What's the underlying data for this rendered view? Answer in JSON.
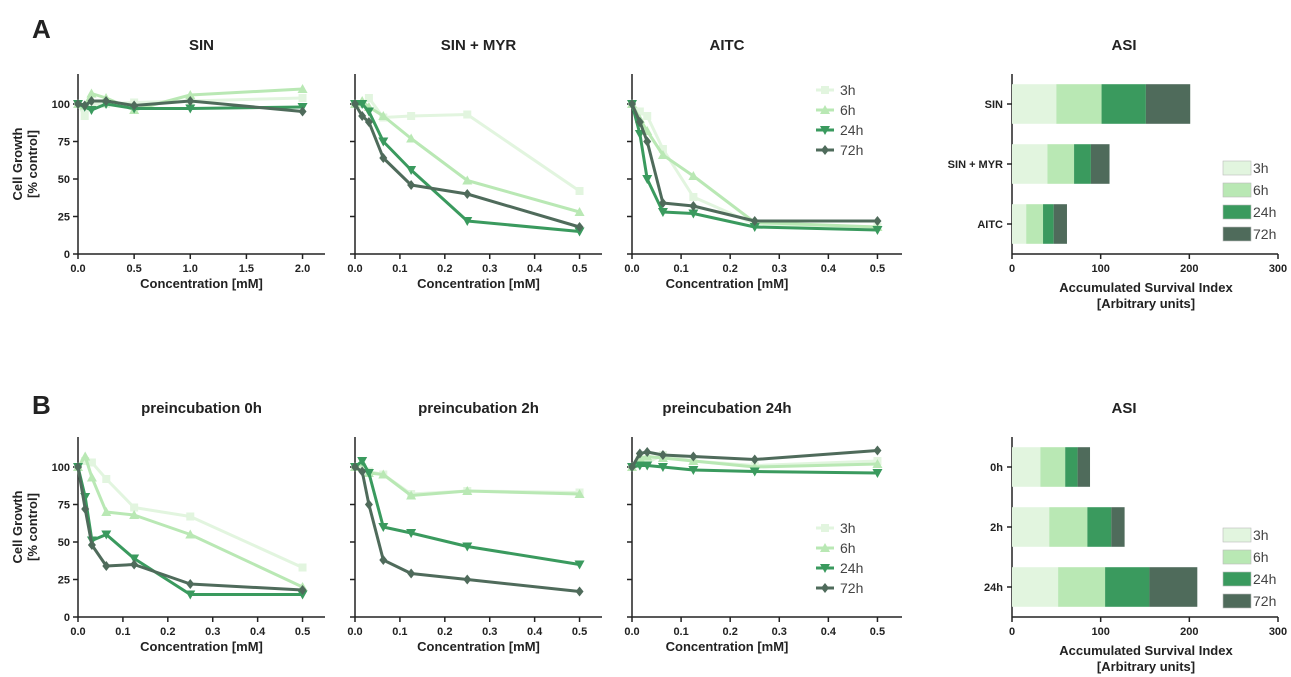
{
  "colors": {
    "3h": "#e2f5df",
    "6h": "#b9e8b4",
    "24h": "#3a9a5e",
    "72h": "#4f6b5b",
    "axis": "#222222"
  },
  "rows": [
    {
      "label": "A"
    },
    {
      "label": "B"
    }
  ],
  "chart_data": [
    {
      "row": 0,
      "col": 0,
      "type": "line",
      "title": "SIN",
      "xlabel": "Concentration [mM]",
      "ylabel": [
        "Cell Growth",
        "[% control]"
      ],
      "xlim": [
        0,
        2.2
      ],
      "ylim": [
        0,
        120
      ],
      "xticks": [
        "0.0",
        "0.5",
        "1.0",
        "1.5",
        "2.0"
      ],
      "xtickvals": [
        0,
        0.5,
        1.0,
        1.5,
        2.0
      ],
      "yticks": [
        "0",
        "25",
        "50",
        "75",
        "100"
      ],
      "ytickvals": [
        0,
        25,
        50,
        75,
        100
      ],
      "legend": null,
      "series": [
        {
          "name": "3h",
          "x": [
            0,
            0.06,
            0.12,
            0.25,
            0.5,
            1.0,
            2.0
          ],
          "y": [
            100,
            92,
            100,
            100,
            101,
            102,
            104
          ]
        },
        {
          "name": "6h",
          "x": [
            0,
            0.06,
            0.12,
            0.25,
            0.5,
            1.0,
            2.0
          ],
          "y": [
            100,
            99,
            107,
            104,
            96,
            106,
            110
          ]
        },
        {
          "name": "24h",
          "x": [
            0,
            0.06,
            0.12,
            0.25,
            0.5,
            1.0,
            2.0
          ],
          "y": [
            100,
            98,
            96,
            100,
            97,
            97,
            98
          ]
        },
        {
          "name": "72h",
          "x": [
            0,
            0.06,
            0.12,
            0.25,
            0.5,
            1.0,
            2.0
          ],
          "y": [
            100,
            99,
            102,
            102,
            99,
            102,
            95
          ]
        }
      ]
    },
    {
      "row": 0,
      "col": 1,
      "type": "line",
      "title": "SIN + MYR",
      "xlabel": "Concentration [mM]",
      "ylabel": null,
      "xlim": [
        0,
        0.55
      ],
      "ylim": [
        0,
        120
      ],
      "xticks": [
        "0.0",
        "0.1",
        "0.2",
        "0.3",
        "0.4",
        "0.5"
      ],
      "xtickvals": [
        0,
        0.1,
        0.2,
        0.3,
        0.4,
        0.5
      ],
      "yticks": [],
      "ytickvals": [
        0,
        25,
        50,
        75,
        100
      ],
      "legend": null,
      "series": [
        {
          "name": "3h",
          "x": [
            0,
            0.016,
            0.031,
            0.063,
            0.125,
            0.25,
            0.5
          ],
          "y": [
            100,
            100,
            104,
            91,
            92,
            93,
            42
          ]
        },
        {
          "name": "6h",
          "x": [
            0,
            0.016,
            0.031,
            0.063,
            0.125,
            0.25,
            0.5
          ],
          "y": [
            100,
            102,
            98,
            92,
            77,
            49,
            28
          ]
        },
        {
          "name": "24h",
          "x": [
            0,
            0.016,
            0.031,
            0.063,
            0.125,
            0.25,
            0.5
          ],
          "y": [
            100,
            100,
            95,
            75,
            56,
            22,
            15
          ]
        },
        {
          "name": "72h",
          "x": [
            0,
            0.016,
            0.031,
            0.063,
            0.125,
            0.25,
            0.5
          ],
          "y": [
            100,
            92,
            88,
            64,
            46,
            40,
            18
          ]
        }
      ]
    },
    {
      "row": 0,
      "col": 2,
      "type": "line",
      "title": "AITC",
      "xlabel": "Concentration [mM]",
      "ylabel": null,
      "xlim": [
        0,
        0.55
      ],
      "ylim": [
        0,
        120
      ],
      "xticks": [
        "0.0",
        "0.1",
        "0.2",
        "0.3",
        "0.4",
        "0.5"
      ],
      "xtickvals": [
        0,
        0.1,
        0.2,
        0.3,
        0.4,
        0.5
      ],
      "yticks": [],
      "ytickvals": [
        0,
        25,
        50,
        75,
        100
      ],
      "legend": [
        "3h",
        "6h",
        "24h",
        "72h"
      ],
      "series": [
        {
          "name": "3h",
          "x": [
            0,
            0.016,
            0.031,
            0.063,
            0.125,
            0.25,
            0.5
          ],
          "y": [
            100,
            95,
            92,
            70,
            38,
            20,
            18
          ]
        },
        {
          "name": "6h",
          "x": [
            0,
            0.016,
            0.031,
            0.063,
            0.125,
            0.25,
            0.5
          ],
          "y": [
            100,
            90,
            82,
            66,
            52,
            21,
            18
          ]
        },
        {
          "name": "24h",
          "x": [
            0,
            0.016,
            0.031,
            0.063,
            0.125,
            0.25,
            0.5
          ],
          "y": [
            100,
            80,
            50,
            28,
            27,
            18,
            16
          ]
        },
        {
          "name": "72h",
          "x": [
            0,
            0.016,
            0.031,
            0.063,
            0.125,
            0.25,
            0.5
          ],
          "y": [
            100,
            88,
            75,
            34,
            32,
            22,
            22
          ]
        }
      ]
    },
    {
      "row": 1,
      "col": 0,
      "type": "line",
      "title": "preincubation 0h",
      "xlabel": "Concentration [mM]",
      "ylabel": [
        "Cell Growth",
        "[% control]"
      ],
      "xlim": [
        0,
        0.55
      ],
      "ylim": [
        0,
        120
      ],
      "xticks": [
        "0.0",
        "0.1",
        "0.2",
        "0.3",
        "0.4",
        "0.5"
      ],
      "xtickvals": [
        0,
        0.1,
        0.2,
        0.3,
        0.4,
        0.5
      ],
      "yticks": [
        "0",
        "25",
        "50",
        "75",
        "100"
      ],
      "ytickvals": [
        0,
        25,
        50,
        75,
        100
      ],
      "legend": null,
      "series": [
        {
          "name": "3h",
          "x": [
            0,
            0.016,
            0.031,
            0.063,
            0.125,
            0.25,
            0.5
          ],
          "y": [
            100,
            104,
            103,
            92,
            73,
            67,
            33
          ]
        },
        {
          "name": "6h",
          "x": [
            0,
            0.016,
            0.031,
            0.063,
            0.125,
            0.25,
            0.5
          ],
          "y": [
            100,
            107,
            93,
            70,
            68,
            55,
            20
          ]
        },
        {
          "name": "24h",
          "x": [
            0,
            0.016,
            0.031,
            0.063,
            0.125,
            0.25,
            0.5
          ],
          "y": [
            100,
            80,
            51,
            55,
            39,
            15,
            15
          ]
        },
        {
          "name": "72h",
          "x": [
            0,
            0.016,
            0.031,
            0.063,
            0.125,
            0.25,
            0.5
          ],
          "y": [
            100,
            72,
            48,
            34,
            35,
            22,
            18
          ]
        }
      ]
    },
    {
      "row": 1,
      "col": 1,
      "type": "line",
      "title": "preincubation 2h",
      "xlabel": "Concentration [mM]",
      "ylabel": null,
      "xlim": [
        0,
        0.55
      ],
      "ylim": [
        0,
        120
      ],
      "xticks": [
        "0.0",
        "0.1",
        "0.2",
        "0.3",
        "0.4",
        "0.5"
      ],
      "xtickvals": [
        0,
        0.1,
        0.2,
        0.3,
        0.4,
        0.5
      ],
      "yticks": [],
      "ytickvals": [
        0,
        25,
        50,
        75,
        100
      ],
      "legend": null,
      "series": [
        {
          "name": "3h",
          "x": [
            0,
            0.016,
            0.031,
            0.063,
            0.125,
            0.25,
            0.5
          ],
          "y": [
            100,
            100,
            97,
            95,
            82,
            84,
            83
          ]
        },
        {
          "name": "6h",
          "x": [
            0,
            0.016,
            0.031,
            0.063,
            0.125,
            0.25,
            0.5
          ],
          "y": [
            100,
            103,
            96,
            95,
            81,
            84,
            82
          ]
        },
        {
          "name": "24h",
          "x": [
            0,
            0.016,
            0.031,
            0.063,
            0.125,
            0.25,
            0.5
          ],
          "y": [
            100,
            104,
            96,
            60,
            56,
            47,
            35
          ]
        },
        {
          "name": "72h",
          "x": [
            0,
            0.016,
            0.031,
            0.063,
            0.125,
            0.25,
            0.5
          ],
          "y": [
            100,
            97,
            75,
            38,
            29,
            25,
            17
          ]
        }
      ]
    },
    {
      "row": 1,
      "col": 2,
      "type": "line",
      "title": "preincubation 24h",
      "xlabel": "Concentration [mM]",
      "ylabel": null,
      "xlim": [
        0,
        0.55
      ],
      "ylim": [
        0,
        120
      ],
      "xticks": [
        "0.0",
        "0.1",
        "0.2",
        "0.3",
        "0.4",
        "0.5"
      ],
      "xtickvals": [
        0,
        0.1,
        0.2,
        0.3,
        0.4,
        0.5
      ],
      "yticks": [],
      "ytickvals": [
        0,
        25,
        50,
        75,
        100
      ],
      "legend": [
        "3h",
        "6h",
        "24h",
        "72h"
      ],
      "series": [
        {
          "name": "3h",
          "x": [
            0,
            0.016,
            0.031,
            0.063,
            0.125,
            0.25,
            0.5
          ],
          "y": [
            100,
            105,
            103,
            108,
            104,
            101,
            104
          ]
        },
        {
          "name": "6h",
          "x": [
            0,
            0.016,
            0.031,
            0.063,
            0.125,
            0.25,
            0.5
          ],
          "y": [
            100,
            106,
            107,
            106,
            104,
            100,
            102
          ]
        },
        {
          "name": "24h",
          "x": [
            0,
            0.016,
            0.031,
            0.063,
            0.125,
            0.25,
            0.5
          ],
          "y": [
            100,
            101,
            101,
            100,
            98,
            97,
            96
          ]
        },
        {
          "name": "72h",
          "x": [
            0,
            0.016,
            0.031,
            0.063,
            0.125,
            0.25,
            0.5
          ],
          "y": [
            100,
            109,
            110,
            108,
            107,
            105,
            111
          ]
        }
      ]
    },
    {
      "row": 0,
      "col": 3,
      "type": "bar",
      "orientation": "horizontal",
      "stacked": true,
      "title": "ASI",
      "xlabel": [
        "Accumulated Survival Index",
        "[Arbitrary units]"
      ],
      "xlim": [
        0,
        300
      ],
      "xticks": [
        "0",
        "100",
        "200",
        "300"
      ],
      "xtickvals": [
        0,
        100,
        200,
        300
      ],
      "categories": [
        "SIN",
        "SIN + MYR",
        "AITC"
      ],
      "legend": [
        "3h",
        "6h",
        "24h",
        "72h"
      ],
      "series": [
        {
          "name": "3h",
          "values": [
            50,
            40,
            16
          ]
        },
        {
          "name": "6h",
          "values": [
            51,
            30,
            19
          ]
        },
        {
          "name": "24h",
          "values": [
            50,
            19,
            12
          ]
        },
        {
          "name": "72h",
          "values": [
            50,
            21,
            15
          ]
        }
      ]
    },
    {
      "row": 1,
      "col": 3,
      "type": "bar",
      "orientation": "horizontal",
      "stacked": true,
      "title": "ASI",
      "xlabel": [
        "Accumulated Survival Index",
        "[Arbitrary units]"
      ],
      "xlim": [
        0,
        300
      ],
      "xticks": [
        "0",
        "100",
        "200",
        "300"
      ],
      "xtickvals": [
        0,
        100,
        200,
        300
      ],
      "categories": [
        "0h",
        "2h",
        "24h"
      ],
      "legend": [
        "3h",
        "6h",
        "24h",
        "72h"
      ],
      "series": [
        {
          "name": "3h",
          "values": [
            32,
            42,
            52
          ]
        },
        {
          "name": "6h",
          "values": [
            28,
            43,
            53
          ]
        },
        {
          "name": "24h",
          "values": [
            14,
            27,
            50
          ]
        },
        {
          "name": "72h",
          "values": [
            14,
            15,
            54
          ]
        }
      ]
    }
  ]
}
